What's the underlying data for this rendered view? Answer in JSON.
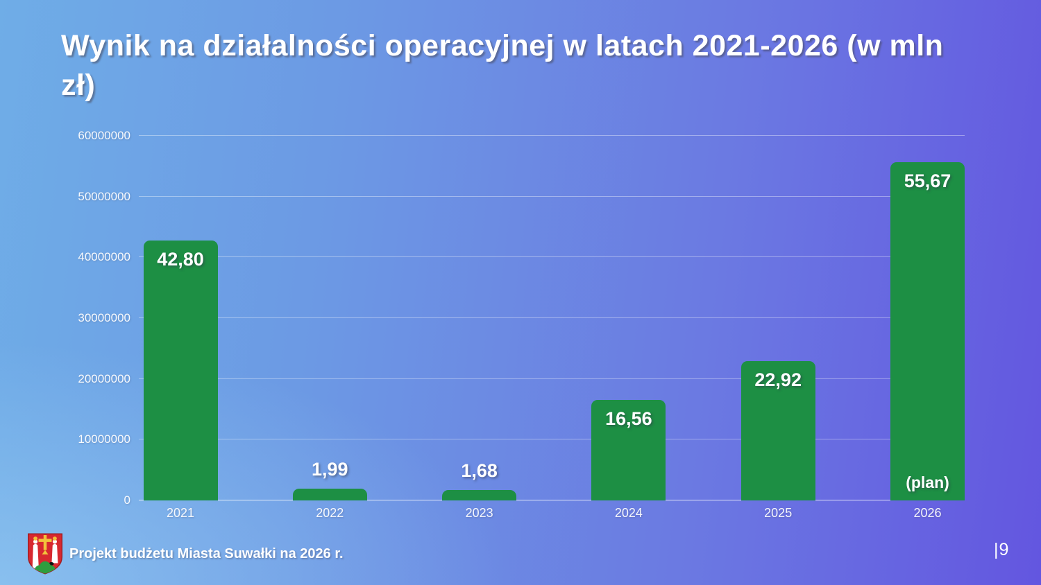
{
  "slide": {
    "title": "Wynik na działalności operacyjnej w latach 2021-2026 (w mln zł)",
    "footer_text": "Projekt budżetu Miasta Suwałki na 2026 r.",
    "page_number": "|9",
    "footer_logo_icon": "suwalki-coat-of-arms-icon"
  },
  "colors": {
    "bar_green": "#1d8f44",
    "background_left_blue": "#6fade7",
    "background_right_purple": "#6356e0",
    "text_white": "#ffffff",
    "shield_red": "#d7282f",
    "cross_gold": "#f2c43c",
    "mound_green": "#2e9e3f"
  },
  "chart_data": {
    "type": "bar",
    "title": "",
    "xlabel": "",
    "ylabel": "",
    "categories": [
      "2021",
      "2022",
      "2023",
      "2024",
      "2025",
      "2026"
    ],
    "values": [
      42800000,
      1990000,
      1680000,
      16560000,
      22920000,
      55670000
    ],
    "bar_labels": [
      "42,80",
      "1,99",
      "1,68",
      "16,56",
      "22,92",
      "55,67"
    ],
    "bar_annotations": [
      "",
      "",
      "",
      "",
      "",
      "(plan)"
    ],
    "ylim": [
      0,
      60000000
    ],
    "ytick_interval": 10000000,
    "ytick_labels_ascending": [
      "0",
      "10000000",
      "20000000",
      "30000000",
      "40000000",
      "50000000",
      "60000000"
    ],
    "grid": true,
    "legend": false
  }
}
